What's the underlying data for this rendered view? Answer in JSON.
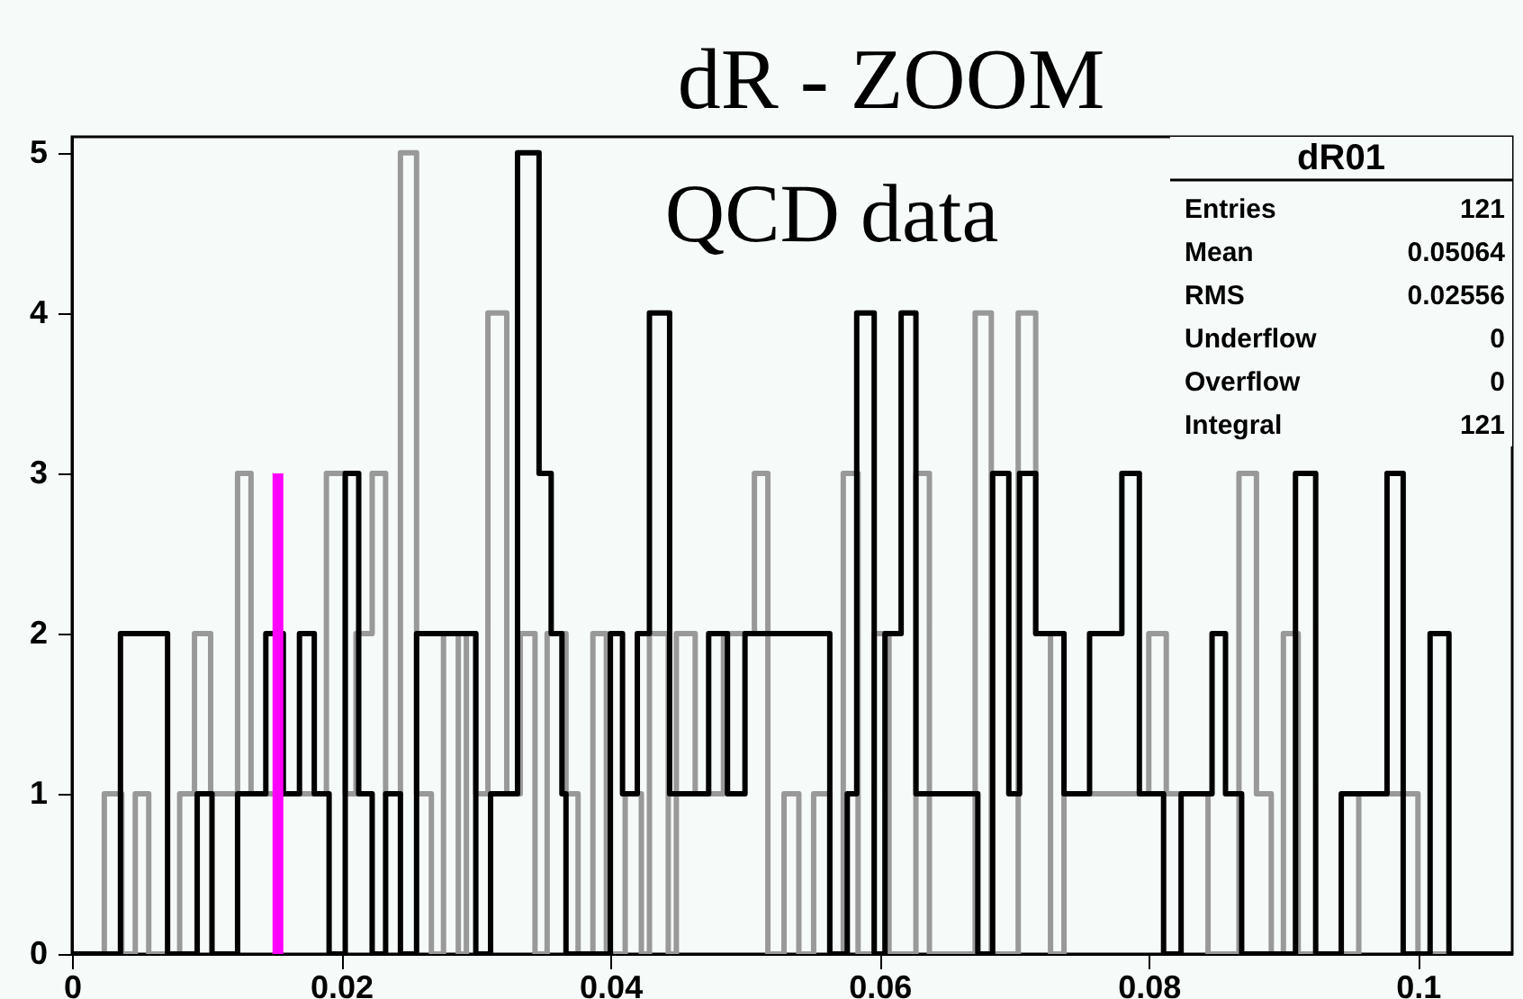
{
  "chart_data": {
    "type": "step",
    "title": "dR - ZOOM",
    "subtitle": "QCD data",
    "xlim": [
      0,
      0.107
    ],
    "ylim": [
      0,
      5.1
    ],
    "xticks": [
      0,
      0.02,
      0.04,
      0.06,
      0.08,
      0.1
    ],
    "yticks": [
      0,
      1,
      2,
      3,
      4,
      5
    ],
    "grid": false,
    "annotations": [
      "dR01",
      "Entries 121",
      "Mean 0.05064",
      "RMS 0.02556",
      "Underflow 0",
      "Overflow 0",
      "Integral 121"
    ],
    "series": [
      {
        "color": "#999999",
        "x": [
          0,
          0.0024,
          0.0037,
          0.0047,
          0.0057,
          0.008,
          0.0091,
          0.0103,
          0.0123,
          0.0133,
          0.0189,
          0.0203,
          0.0211,
          0.0223,
          0.0233,
          0.0244,
          0.0256,
          0.0267,
          0.0276,
          0.0287,
          0.0293,
          0.03,
          0.0309,
          0.0323,
          0.0333,
          0.0344,
          0.0353,
          0.0367,
          0.0376,
          0.0387,
          0.0397,
          0.0411,
          0.0423,
          0.0429,
          0.0443,
          0.0449,
          0.0463,
          0.0484,
          0.0507,
          0.0517,
          0.0529,
          0.054,
          0.0551,
          0.0563,
          0.0573,
          0.0584,
          0.0596,
          0.0607,
          0.0627,
          0.0637,
          0.0671,
          0.0683,
          0.0703,
          0.0716,
          0.0727,
          0.0737,
          0.08,
          0.0813,
          0.0844,
          0.0867,
          0.088,
          0.0891,
          0.09,
          0.0911,
          0.0956,
          0.1,
          0.107
        ],
        "values": [
          0,
          1,
          0,
          1,
          0,
          1,
          2,
          1,
          3,
          1,
          3,
          1,
          2,
          3,
          1,
          5,
          1,
          0,
          2,
          0,
          2,
          1,
          4,
          1,
          2,
          0,
          2,
          1,
          0,
          2,
          0,
          1,
          0,
          2,
          0,
          2,
          1,
          2,
          3,
          0,
          1,
          0,
          1,
          0,
          3,
          0,
          2,
          0,
          3,
          0,
          4,
          0,
          4,
          2,
          0,
          1,
          2,
          1,
          0,
          3,
          1,
          0,
          2,
          0,
          1,
          0,
          0
        ]
      },
      {
        "color": "#000000",
        "x": [
          0,
          0.0036,
          0.0071,
          0.0093,
          0.0104,
          0.0123,
          0.0144,
          0.0157,
          0.0169,
          0.018,
          0.0191,
          0.0203,
          0.0213,
          0.0223,
          0.0233,
          0.0244,
          0.0256,
          0.03,
          0.0311,
          0.0331,
          0.0347,
          0.0356,
          0.0364,
          0.0367,
          0.04,
          0.0409,
          0.042,
          0.0429,
          0.0444,
          0.0473,
          0.0487,
          0.05,
          0.0563,
          0.0576,
          0.0583,
          0.0596,
          0.0604,
          0.0616,
          0.0627,
          0.0673,
          0.0684,
          0.0696,
          0.0704,
          0.0716,
          0.0737,
          0.0756,
          0.078,
          0.0793,
          0.0811,
          0.0824,
          0.0847,
          0.0857,
          0.0869,
          0.0909,
          0.0924,
          0.0943,
          0.0977,
          0.0989,
          0.1009,
          0.1023,
          0.107
        ],
        "values": [
          0,
          2,
          0,
          1,
          0,
          1,
          2,
          1,
          2,
          1,
          0,
          3,
          1,
          0,
          1,
          0,
          2,
          0,
          1,
          5,
          3,
          2,
          1,
          0,
          2,
          1,
          2,
          4,
          1,
          2,
          1,
          2,
          0,
          1,
          4,
          0,
          2,
          4,
          1,
          0,
          3,
          1,
          3,
          2,
          1,
          2,
          3,
          1,
          0,
          1,
          2,
          1,
          0,
          3,
          0,
          1,
          3,
          0,
          2,
          0,
          0
        ]
      },
      {
        "type": "line",
        "color": "#ff00ff",
        "x": [
          0.0153,
          0.0153
        ],
        "values": [
          0,
          3
        ]
      }
    ]
  }
}
